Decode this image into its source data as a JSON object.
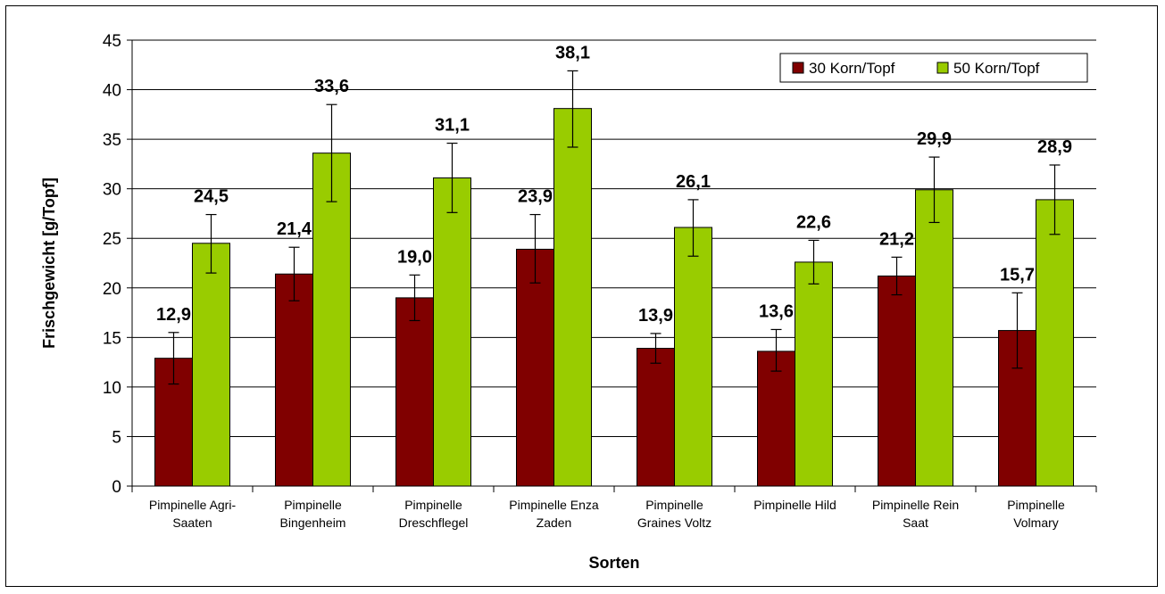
{
  "chart_data": {
    "type": "bar",
    "title": "",
    "xlabel": "Sorten",
    "ylabel": "Frischgewicht  [g/Topf]",
    "ylim": [
      0,
      45
    ],
    "yticks": [
      0,
      5,
      10,
      15,
      20,
      25,
      30,
      35,
      40,
      45
    ],
    "grid": true,
    "legend_position": "top-right",
    "categories": [
      [
        "Pimpinelle Agri-",
        "Saaten"
      ],
      [
        "Pimpinelle",
        "Bingenheim"
      ],
      [
        "Pimpinelle",
        "Dreschflegel"
      ],
      [
        "Pimpinelle Enza",
        "Zaden"
      ],
      [
        "Pimpinelle",
        "Graines Voltz"
      ],
      [
        "Pimpinelle Hild"
      ],
      [
        "Pimpinelle Rein",
        "Saat"
      ],
      [
        "Pimpinelle",
        "Volmary"
      ]
    ],
    "series": [
      {
        "name": "30 Korn/Topf",
        "color": "#800000",
        "values": [
          12.9,
          21.4,
          19.0,
          23.9,
          13.9,
          13.6,
          21.2,
          15.7
        ],
        "labels": [
          "12,9",
          "21,4",
          "19,0",
          "23,9",
          "13,9",
          "13,6",
          "21,2",
          "15,7"
        ],
        "error_low": [
          10.3,
          18.7,
          16.7,
          20.5,
          12.4,
          11.6,
          19.3,
          11.9
        ],
        "error_high": [
          15.5,
          24.1,
          21.3,
          27.4,
          15.4,
          15.8,
          23.1,
          19.5
        ]
      },
      {
        "name": "50 Korn/Topf",
        "color": "#99CC00",
        "values": [
          24.5,
          33.6,
          31.1,
          38.1,
          26.1,
          22.6,
          29.9,
          28.9
        ],
        "labels": [
          "24,5",
          "33,6",
          "31,1",
          "38,1",
          "26,1",
          "22,6",
          "29,9",
          "28,9"
        ],
        "error_low": [
          21.5,
          28.7,
          27.6,
          34.2,
          23.2,
          20.4,
          26.6,
          25.4
        ],
        "error_high": [
          27.4,
          38.5,
          34.6,
          41.9,
          28.9,
          24.8,
          33.2,
          32.4
        ]
      }
    ]
  }
}
